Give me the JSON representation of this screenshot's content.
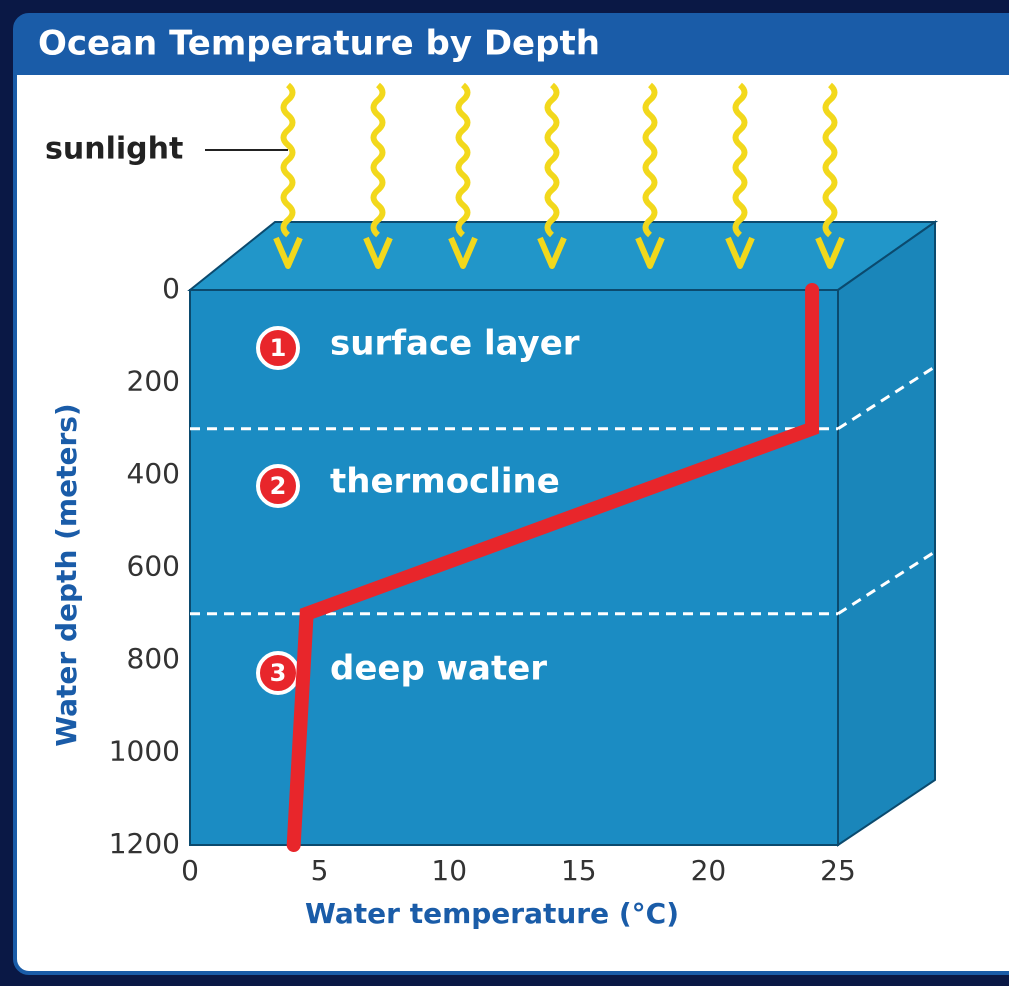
{
  "chart_data": {
    "type": "line",
    "title": "Ocean Temperature by Depth",
    "sunlight_label": "sunlight",
    "x_label": "Water temperature (°C)",
    "y_label": "Water depth (meters)",
    "x": [
      24,
      24,
      4.5,
      4
    ],
    "series": [
      {
        "color": "#e8262b",
        "values": [
          0,
          300,
          700,
          1200
        ]
      }
    ],
    "xlim": [
      0,
      25
    ],
    "xticks": [
      0,
      5,
      10,
      15,
      20,
      25
    ],
    "ylim": [
      0,
      1200
    ],
    "yticks": [
      0,
      200,
      400,
      600,
      800,
      1000,
      1200
    ],
    "invert_y": true,
    "layer_boundaries": [
      300,
      700
    ],
    "layers": [
      {
        "number": 1,
        "label": "surface layer"
      },
      {
        "number": 2,
        "label": "thermocline"
      },
      {
        "number": 3,
        "label": "deep water"
      }
    ]
  }
}
